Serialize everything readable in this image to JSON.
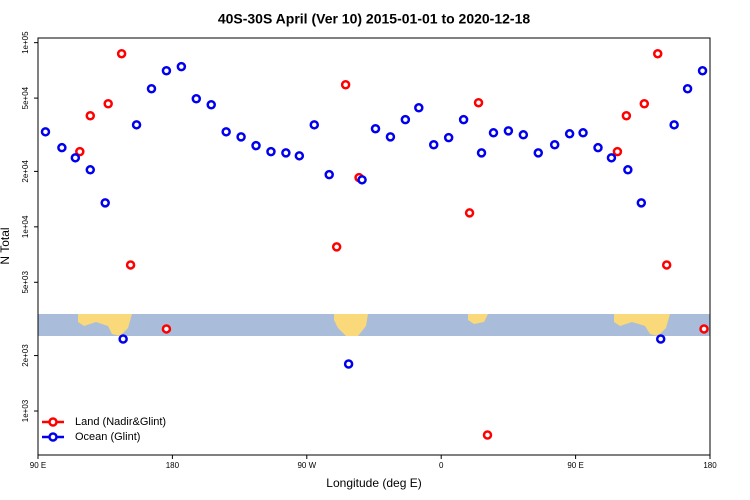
{
  "chart_data": {
    "type": "scatter",
    "title": "40S-30S April (Ver 10)   2015-01-01 to 2020-12-18",
    "x_label": "Longitude (deg E)",
    "y_label": "N Total",
    "log_y": true,
    "legend": "bottom-left",
    "xlim": [
      90,
      540
    ],
    "xticks": [
      {
        "value": 90,
        "label": "90 E"
      },
      180,
      {
        "value": 270,
        "label": "90 W"
      },
      {
        "value": 360,
        "label": "0"
      },
      {
        "value": 450,
        "label": "90 E"
      },
      {
        "value": 540,
        "label": "180"
      }
    ],
    "ylim": [
      577,
      106000
    ],
    "yticks": [
      {
        "value": 1000,
        "label": "1e+03"
      },
      {
        "value": 2000,
        "label": "2e+03"
      },
      {
        "value": 5000,
        "label": "5e+03"
      },
      {
        "value": 10000,
        "label": "1e+04"
      },
      {
        "value": 20000,
        "label": "2e+04"
      },
      {
        "value": 50000,
        "label": "5e+04"
      },
      {
        "value": 100000,
        "label": "1e+05"
      }
    ],
    "series": [
      {
        "name": "Land (Nadir&Glint)",
        "color": "#ff0000",
        "x": [
          118,
          125,
          137,
          146,
          152,
          176,
          290,
          296,
          305,
          379,
          385,
          391,
          478,
          484,
          496,
          505,
          511,
          536
        ],
        "values": [
          25600,
          40100,
          46600,
          87100,
          6210,
          2790,
          7780,
          59100,
          18500,
          11900,
          47200,
          741,
          25600,
          40100,
          46600,
          87100,
          6210,
          2790
        ]
      },
      {
        "name": "Ocean (Glint)",
        "color": "#0000ee",
        "x": [
          95,
          106,
          115,
          125,
          135,
          147,
          156,
          166,
          176,
          186,
          196,
          206,
          216,
          226,
          236,
          246,
          256,
          265,
          275,
          285,
          298,
          307,
          316,
          326,
          336,
          345,
          355,
          365,
          375,
          387,
          395,
          405,
          415,
          425,
          436,
          446,
          455,
          465,
          474,
          485,
          494,
          507,
          516,
          525,
          535
        ],
        "values": [
          32800,
          26900,
          23700,
          20400,
          13500,
          2460,
          35800,
          56200,
          70400,
          74100,
          49600,
          46000,
          32800,
          30800,
          27600,
          25600,
          25200,
          24300,
          35800,
          19200,
          1800,
          18000,
          34100,
          30800,
          38200,
          44300,
          27900,
          30500,
          38200,
          25200,
          32400,
          33200,
          31600,
          25200,
          27900,
          32000,
          32400,
          26900,
          23700,
          20400,
          13500,
          2460,
          35800,
          56200,
          70400
        ]
      }
    ]
  }
}
